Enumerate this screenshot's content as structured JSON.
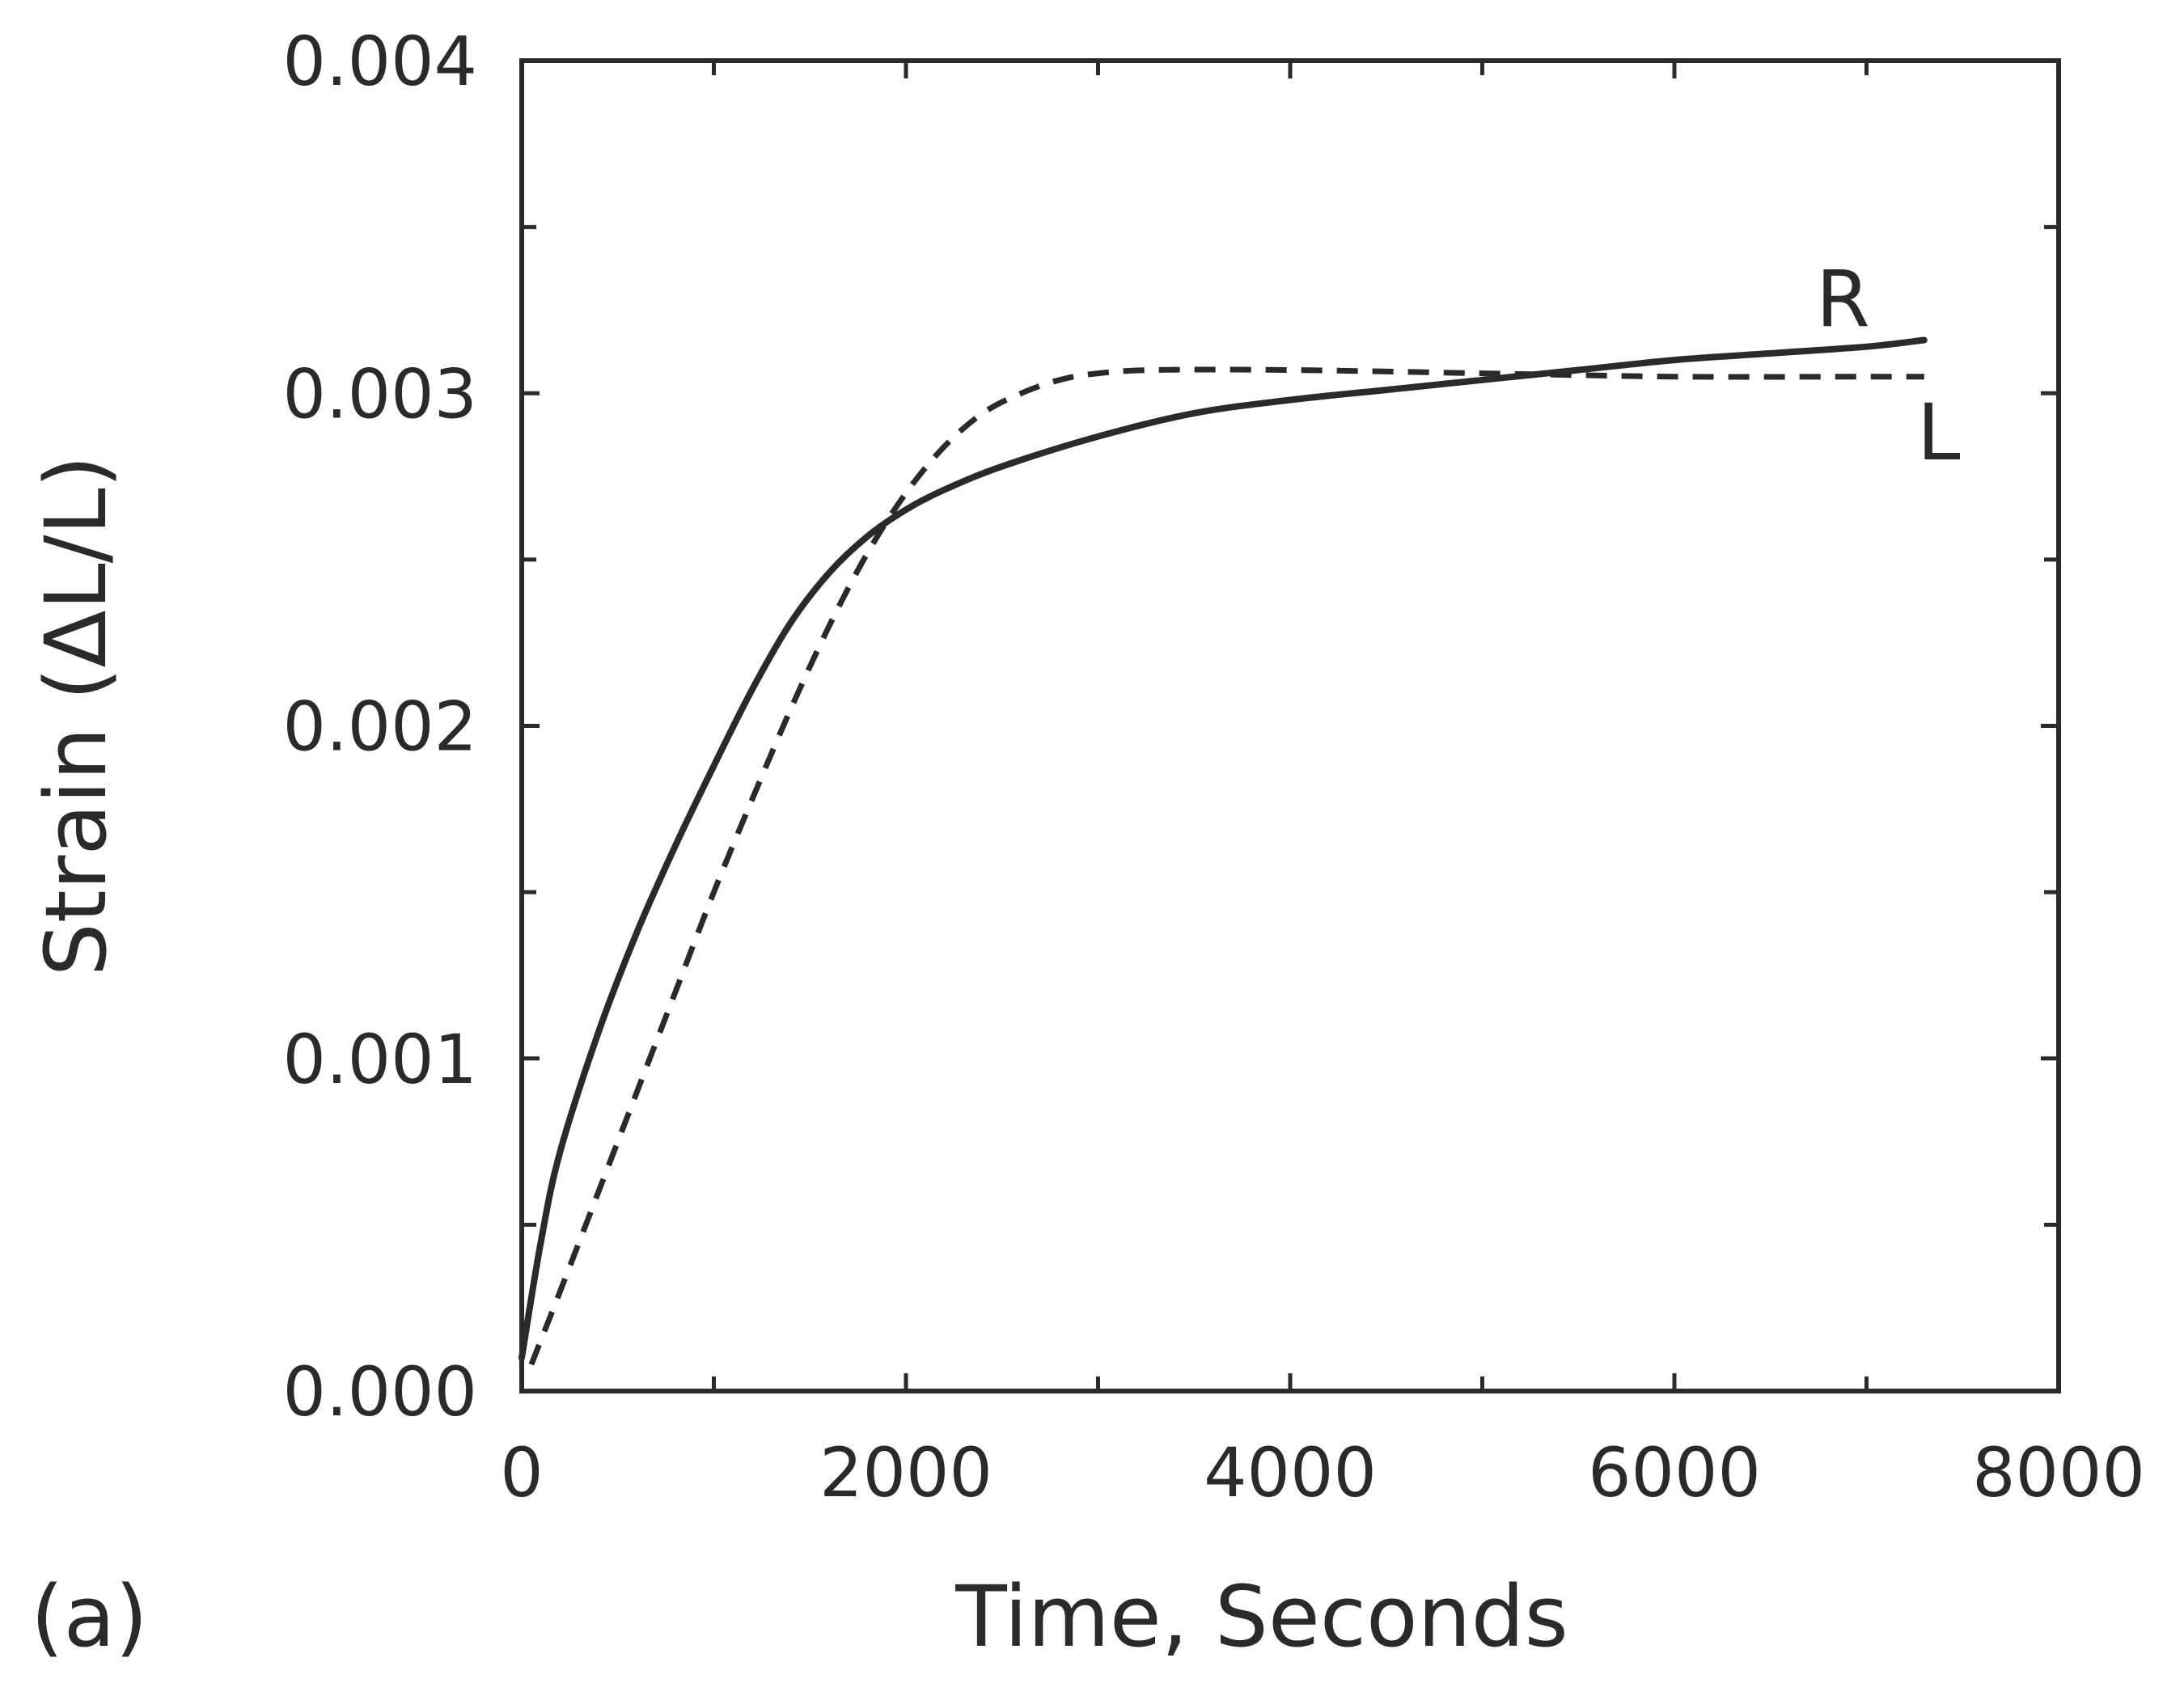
{
  "chart_data": {
    "type": "line",
    "panel_label": "(a)",
    "xlabel": "Time, Seconds",
    "ylabel": "Strain (ΔL/L)",
    "xlim": [
      0,
      8000
    ],
    "ylim": [
      0,
      0.004
    ],
    "x_ticks": [
      0,
      2000,
      4000,
      6000,
      8000
    ],
    "x_tick_labels": [
      "0",
      "2000",
      "4000",
      "6000",
      "8000"
    ],
    "x_minor_ticks": [
      1000,
      3000,
      5000,
      7000
    ],
    "y_ticks": [
      0,
      0.001,
      0.002,
      0.003,
      0.004
    ],
    "y_tick_labels": [
      "0.000",
      "0.001",
      "0.002",
      "0.003",
      "0.004"
    ],
    "y_minor_ticks": [
      0.0005,
      0.0015,
      0.0025,
      0.0035
    ],
    "grid": false,
    "legend": "none",
    "series": [
      {
        "name": "R",
        "style": "solid",
        "color": "#2a2a2a",
        "points": [
          [
            0,
            0.0001
          ],
          [
            100,
            0.00045
          ],
          [
            200,
            0.00072
          ],
          [
            400,
            0.00108
          ],
          [
            600,
            0.00138
          ],
          [
            800,
            0.00164
          ],
          [
            1000,
            0.00188
          ],
          [
            1200,
            0.00211
          ],
          [
            1400,
            0.00231
          ],
          [
            1600,
            0.00246
          ],
          [
            1800,
            0.00257
          ],
          [
            2000,
            0.00265
          ],
          [
            2200,
            0.00271
          ],
          [
            2500,
            0.00278
          ],
          [
            3000,
            0.00287
          ],
          [
            3500,
            0.00294
          ],
          [
            4000,
            0.00298
          ],
          [
            4500,
            0.00301
          ],
          [
            5000,
            0.00304
          ],
          [
            5500,
            0.00307
          ],
          [
            6000,
            0.0031
          ],
          [
            6500,
            0.00312
          ],
          [
            7000,
            0.00314
          ],
          [
            7300,
            0.00316
          ]
        ]
      },
      {
        "name": "L",
        "style": "dashed",
        "color": "#2a2a2a",
        "points": [
          [
            50,
            8e-05
          ],
          [
            200,
            0.0003
          ],
          [
            400,
            0.0006
          ],
          [
            600,
            0.0009
          ],
          [
            800,
            0.0012
          ],
          [
            1000,
            0.0015
          ],
          [
            1200,
            0.00178
          ],
          [
            1400,
            0.00205
          ],
          [
            1600,
            0.0023
          ],
          [
            1800,
            0.00252
          ],
          [
            2000,
            0.0027
          ],
          [
            2200,
            0.00284
          ],
          [
            2400,
            0.00294
          ],
          [
            2600,
            0.003
          ],
          [
            2800,
            0.00304
          ],
          [
            3000,
            0.00306
          ],
          [
            3300,
            0.00307
          ],
          [
            4000,
            0.00307
          ],
          [
            5000,
            0.00306
          ],
          [
            6000,
            0.00305
          ],
          [
            7000,
            0.00305
          ],
          [
            7300,
            0.00305
          ]
        ]
      }
    ]
  }
}
